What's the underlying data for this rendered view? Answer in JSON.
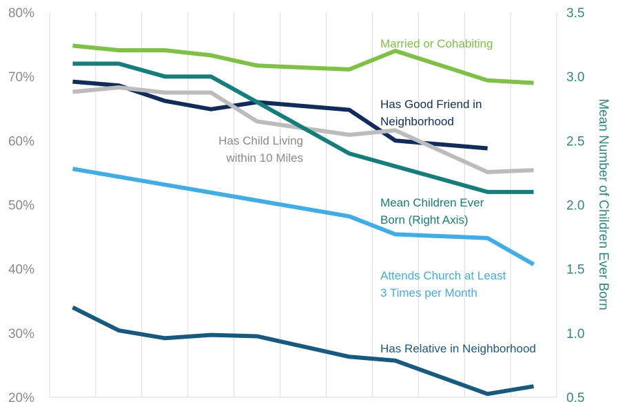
{
  "chart_data": {
    "type": "line",
    "x": [
      1,
      2,
      3,
      4,
      5,
      6,
      7,
      8,
      9,
      10,
      11
    ],
    "xlabel": "",
    "ylabel": "",
    "y2label": "Mean Number of Children Ever Born",
    "ylim": [
      20,
      80
    ],
    "y2lim": [
      0.5,
      3.5
    ],
    "yticks": [
      "20%",
      "30%",
      "40%",
      "50%",
      "60%",
      "70%",
      "80%"
    ],
    "y2ticks": [
      "0.5",
      "1.0",
      "1.5",
      "2.0",
      "2.5",
      "3.0",
      "3.5"
    ],
    "grid": "vertical",
    "series": [
      {
        "name": "Married or Cohabiting",
        "axis": "left",
        "color": "#7dc242",
        "values": [
          74.8,
          74.1,
          74.1,
          73.3,
          71.7,
          71.4,
          71.1,
          74.0,
          null,
          69.4,
          69.0
        ]
      },
      {
        "name": "Has Good Friend in Neighborhood",
        "axis": "left",
        "color": "#0f2c5c",
        "values": [
          69.2,
          68.6,
          66.2,
          64.9,
          66.0,
          null,
          64.8,
          60.0,
          null,
          58.8,
          null
        ]
      },
      {
        "name": "Has Child Living within 10 Miles",
        "axis": "left",
        "color": "#bcbcbc",
        "values": [
          67.6,
          68.3,
          67.5,
          67.5,
          63.0,
          null,
          60.9,
          61.6,
          null,
          55.1,
          55.4
        ]
      },
      {
        "name": "Mean Children Ever Born (Right Axis)",
        "axis": "right",
        "color": "#127f7a",
        "values": [
          3.1,
          3.1,
          3.0,
          3.0,
          2.8,
          null,
          2.4,
          2.3,
          null,
          2.1,
          2.1
        ]
      },
      {
        "name": "Attends Church at Least 3 Times per Month",
        "axis": "left",
        "color": "#3daee9",
        "values": [
          55.6,
          null,
          null,
          null,
          null,
          null,
          48.2,
          45.4,
          null,
          44.8,
          40.7
        ]
      },
      {
        "name": "Has Relative in Neighborhood",
        "axis": "left",
        "color": "#155a80",
        "values": [
          34.0,
          30.4,
          29.2,
          29.7,
          29.5,
          null,
          26.3,
          25.7,
          null,
          20.5,
          21.7
        ]
      }
    ],
    "labels": [
      {
        "lines": [
          "Married or Cohabiting"
        ],
        "color": "#7dc242"
      },
      {
        "lines": [
          "Has Good Friend in",
          "Neighborhood"
        ],
        "color": "#0f2c5c"
      },
      {
        "lines": [
          "Has Child Living",
          "within 10 Miles"
        ],
        "color": "#8a8a8a"
      },
      {
        "lines": [
          "Mean Children Ever",
          "Born (Right Axis)"
        ],
        "color": "#127f7a"
      },
      {
        "lines": [
          "Attends Church at Least",
          "3 Times per Month"
        ],
        "color": "#3daee9"
      },
      {
        "lines": [
          "Has Relative in Neighborhood"
        ],
        "color": "#155a80"
      }
    ]
  }
}
